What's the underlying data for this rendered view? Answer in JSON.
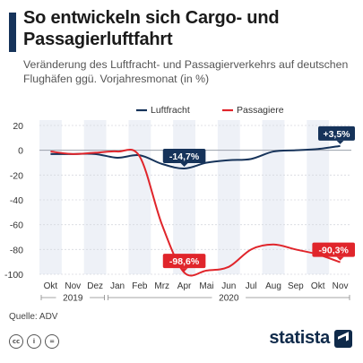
{
  "title": "So entwickeln sich Cargo- und Passagierluftfahrt",
  "subtitle": "Veränderung des Luftfracht- und Passagierverkehrs auf deutschen Flughäfen ggü. Vorjahresmonat (in %)",
  "source": "Quelle: ADV",
  "brand": "statista",
  "cc_icons": [
    "cc",
    "by",
    "nd"
  ],
  "chart_data": {
    "type": "line",
    "categories": [
      "Okt",
      "Nov",
      "Dez",
      "Jan",
      "Feb",
      "Mrz",
      "Apr",
      "Mai",
      "Jun",
      "Jul",
      "Aug",
      "Sep",
      "Okt",
      "Nov"
    ],
    "years": [
      {
        "label": "2019",
        "from": 0,
        "to": 2
      },
      {
        "label": "2020",
        "from": 3,
        "to": 13
      }
    ],
    "series": [
      {
        "name": "Luftfracht",
        "color": "#16335a",
        "values": [
          -3,
          -3,
          -3,
          -6,
          -4,
          -11,
          -14.7,
          -10,
          -8,
          -7,
          -1,
          0,
          1,
          3.5
        ]
      },
      {
        "name": "Passagiere",
        "color": "#e0252b",
        "values": [
          -1,
          -3,
          -2,
          -1,
          -5,
          -60,
          -98.6,
          -97,
          -94,
          -80,
          -76,
          -80,
          -84,
          -90.3
        ]
      }
    ],
    "annotations": [
      {
        "series": 0,
        "index": 6,
        "label": "-14,7%"
      },
      {
        "series": 0,
        "index": 13,
        "label": "+3,5%"
      },
      {
        "series": 1,
        "index": 6,
        "label": "-98,6%"
      },
      {
        "series": 1,
        "index": 13,
        "label": "-90,3%"
      }
    ],
    "yticks": [
      20,
      0,
      -20,
      -40,
      -60,
      -80,
      -100
    ],
    "ylim": [
      -100,
      20
    ],
    "grid": true,
    "legend": "top-center"
  }
}
